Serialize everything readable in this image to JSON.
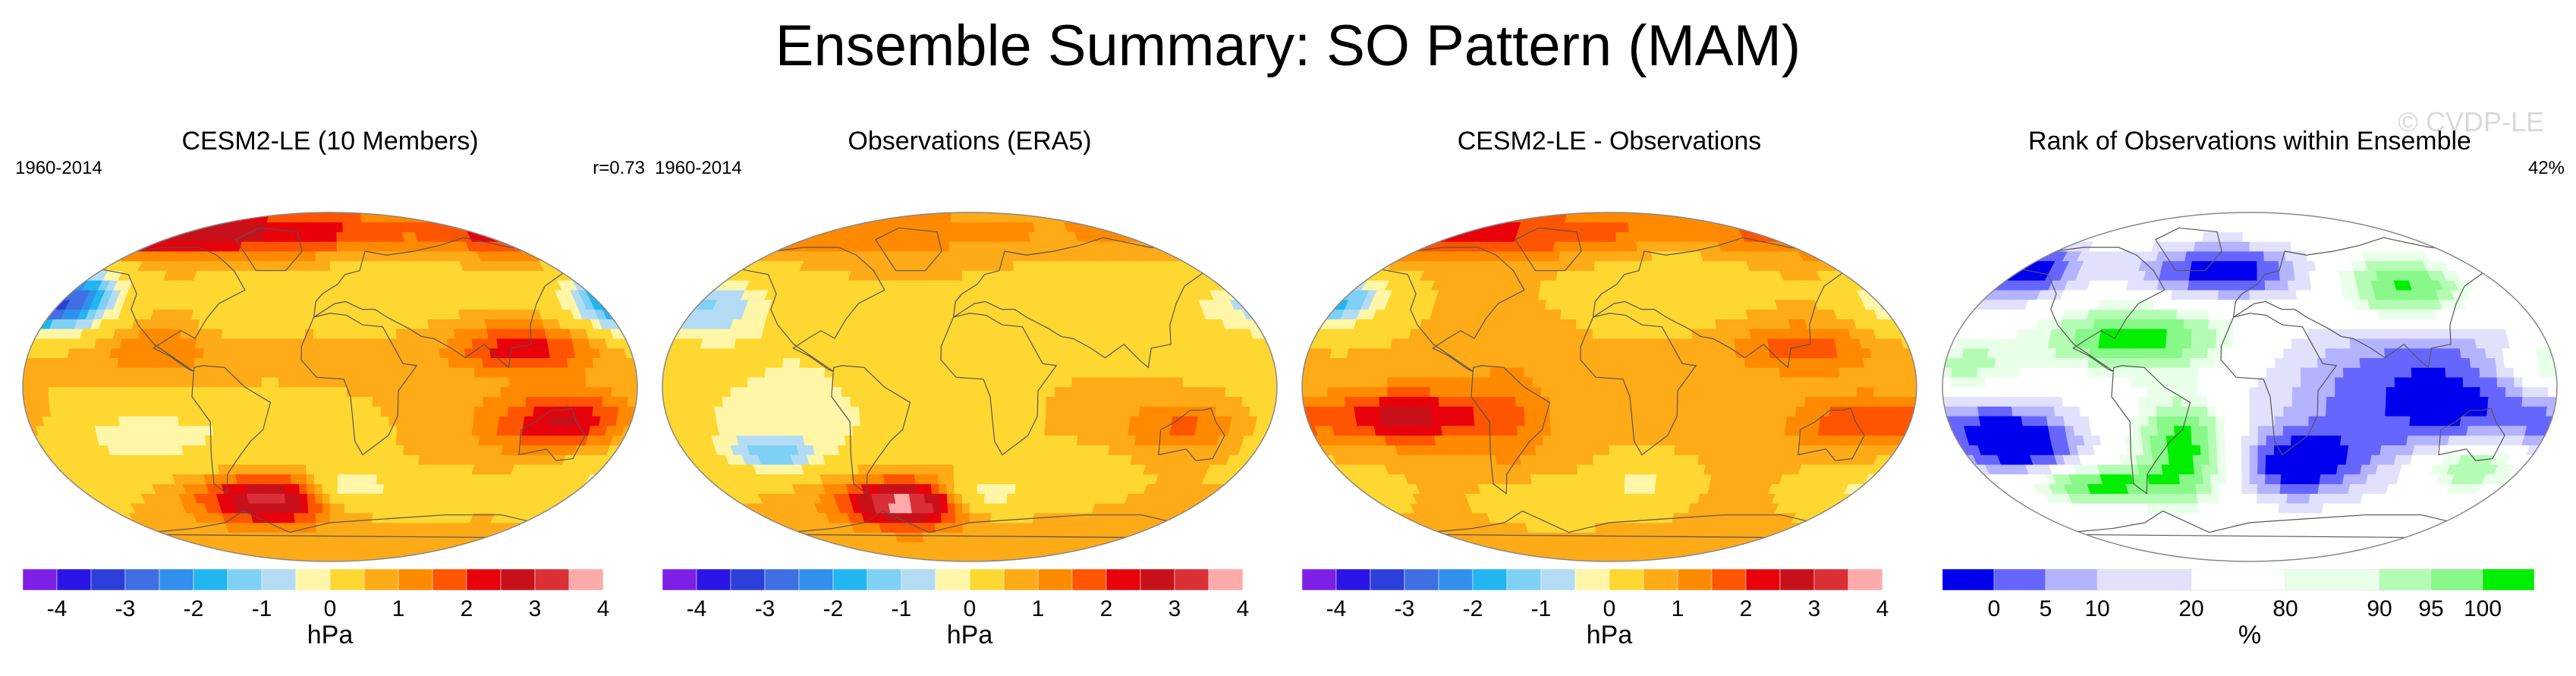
{
  "page": {
    "title": "Ensemble Summary: SO Pattern (MAM)",
    "watermark": "© CVDP-LE"
  },
  "colors": {
    "hpa_palette": [
      "#7e1fe6",
      "#2b14e6",
      "#2c3fd8",
      "#3f6fe3",
      "#3090ec",
      "#22b6f0",
      "#7fd0f5",
      "#b3dcf4",
      "#fff6a8",
      "#ffd731",
      "#ffaa17",
      "#ff8a00",
      "#ff5500",
      "#e8000b",
      "#c8101a",
      "#db2f38",
      "#ffaaaa"
    ],
    "rank_palette": [
      "#0000ee",
      "#6666ff",
      "#b3b3ff",
      "#e1e1fb",
      "#ffffff",
      "#e8ffe8",
      "#b4fcb4",
      "#88f888",
      "#00ee00"
    ]
  },
  "chart_data": [
    {
      "type": "heatmap",
      "title": "CESM2-LE (10 Members)",
      "period": "1960-2014",
      "stat": "r=0.73",
      "units": "hPa",
      "colorbar_ticks": [
        "-4",
        "-3",
        "-2",
        "-1",
        "0",
        "1",
        "2",
        "3",
        "4"
      ],
      "colorbar_levels": [
        -4.5,
        -4,
        -3.5,
        -3,
        -2.5,
        -2,
        -1.5,
        -1,
        -0.5,
        0.5,
        1,
        1.5,
        2,
        2.5,
        3,
        3.5,
        4,
        4.5
      ],
      "blobs": [
        {
          "lon": -170,
          "lat": 44,
          "sx": 26,
          "sy": 12,
          "value": -4.2
        },
        {
          "lon": 115,
          "lat": 20,
          "sx": 30,
          "sy": 9,
          "value": 1.8
        },
        {
          "lon": 140,
          "lat": -18,
          "sx": 32,
          "sy": 11,
          "value": 2.2
        },
        {
          "lon": -40,
          "lat": -58,
          "sx": 34,
          "sy": 9,
          "value": 2.8
        },
        {
          "lon": -110,
          "lat": -25,
          "sx": 60,
          "sy": 14,
          "value": -1.3
        },
        {
          "lon": 10,
          "lat": -52,
          "sx": 18,
          "sy": 8,
          "value": -2.0
        },
        {
          "lon": -120,
          "lat": 80,
          "sx": 150,
          "sy": 9,
          "value": 2.3
        },
        {
          "lon": 60,
          "lat": -55,
          "sx": 22,
          "sy": 7,
          "value": -0.9
        },
        {
          "lon": -100,
          "lat": 20,
          "sx": 35,
          "sy": 12,
          "value": 0.8
        },
        {
          "lon": -60,
          "lat": 40,
          "sx": 20,
          "sy": 15,
          "value": -0.7
        },
        {
          "lon": 40,
          "lat": 55,
          "sx": 40,
          "sy": 15,
          "value": -0.6
        },
        {
          "lon": 170,
          "lat": -50,
          "sx": 30,
          "sy": 10,
          "value": -1.0
        }
      ],
      "base": 0.55
    },
    {
      "type": "heatmap",
      "title": "Observations (ERA5)",
      "period": "1960-2014",
      "units": "hPa",
      "colorbar_ticks": [
        "-4",
        "-3",
        "-2",
        "-1",
        "0",
        "1",
        "2",
        "3",
        "4"
      ],
      "colorbar_levels": [
        -4.5,
        -4,
        -3.5,
        -3,
        -2.5,
        -2,
        -1.5,
        -1,
        -0.5,
        0.5,
        1,
        1.5,
        2,
        2.5,
        3,
        3.5,
        4,
        4.5
      ],
      "blobs": [
        {
          "lon": -165,
          "lat": 42,
          "sx": 30,
          "sy": 12,
          "value": -1.8
        },
        {
          "lon": 130,
          "lat": -20,
          "sx": 28,
          "sy": 10,
          "value": 1.2
        },
        {
          "lon": -45,
          "lat": -60,
          "sx": 30,
          "sy": 9,
          "value": 3.2
        },
        {
          "lon": -110,
          "lat": -20,
          "sx": 60,
          "sy": 16,
          "value": -1.2
        },
        {
          "lon": 10,
          "lat": -55,
          "sx": 18,
          "sy": 7,
          "value": -1.8
        },
        {
          "lon": -100,
          "lat": 15,
          "sx": 60,
          "sy": 18,
          "value": -0.9
        },
        {
          "lon": 100,
          "lat": 40,
          "sx": 50,
          "sy": 15,
          "value": -0.8
        },
        {
          "lon": -120,
          "lat": 80,
          "sx": 150,
          "sy": 8,
          "value": 0.9
        },
        {
          "lon": 60,
          "lat": -45,
          "sx": 25,
          "sy": 8,
          "value": -0.9
        },
        {
          "lon": -120,
          "lat": -35,
          "sx": 20,
          "sy": 6,
          "value": -1.8
        }
      ],
      "base": 0.55
    },
    {
      "type": "heatmap",
      "title": "CESM2-LE - Observations",
      "units": "hPa",
      "colorbar_ticks": [
        "-4",
        "-3",
        "-2",
        "-1",
        "0",
        "1",
        "2",
        "3",
        "4"
      ],
      "colorbar_levels": [
        -4.5,
        -4,
        -3.5,
        -3,
        -2.5,
        -2,
        -1.5,
        -1,
        -0.5,
        0.5,
        1,
        1.5,
        2,
        2.5,
        3,
        3.5,
        4,
        4.5
      ],
      "blobs": [
        {
          "lon": -170,
          "lat": 44,
          "sx": 22,
          "sy": 10,
          "value": -2.6
        },
        {
          "lon": 115,
          "lat": 20,
          "sx": 28,
          "sy": 9,
          "value": 1.3
        },
        {
          "lon": 150,
          "lat": -18,
          "sx": 30,
          "sy": 10,
          "value": 1.4
        },
        {
          "lon": -120,
          "lat": -15,
          "sx": 30,
          "sy": 10,
          "value": 2.2
        },
        {
          "lon": -120,
          "lat": 80,
          "sx": 150,
          "sy": 9,
          "value": 1.6
        },
        {
          "lon": 20,
          "lat": -50,
          "sx": 18,
          "sy": 8,
          "value": -1.2
        },
        {
          "lon": 170,
          "lat": -52,
          "sx": 25,
          "sy": 8,
          "value": -1.3
        },
        {
          "lon": -40,
          "lat": -58,
          "sx": 25,
          "sy": 7,
          "value": -0.8
        },
        {
          "lon": -60,
          "lat": -15,
          "sx": 20,
          "sy": 20,
          "value": 0.9
        },
        {
          "lon": 40,
          "lat": 55,
          "sx": 40,
          "sy": 15,
          "value": -0.6
        }
      ],
      "base": 0.55
    },
    {
      "type": "heatmap",
      "title": "Rank of Observations within Ensemble",
      "stat": "42%",
      "units": "%",
      "colorbar_ticks": [
        "0",
        "5",
        "10",
        "20",
        "80",
        "90",
        "95",
        "100"
      ],
      "colorbar_levels": [
        0,
        5,
        10,
        20,
        80,
        90,
        95,
        100
      ],
      "categories": [
        "0-5",
        "5-10",
        "10-20",
        "20-80",
        "80-90",
        "90-95",
        "95-100"
      ],
      "blobs": [
        {
          "lon": 120,
          "lat": -5,
          "sx": 70,
          "sy": 28,
          "value": -3
        },
        {
          "lon": -150,
          "lat": 60,
          "sx": 25,
          "sy": 10,
          "value": -3
        },
        {
          "lon": -175,
          "lat": 10,
          "sx": 30,
          "sy": 12,
          "value": 3
        },
        {
          "lon": -70,
          "lat": 25,
          "sx": 40,
          "sy": 12,
          "value": 3
        },
        {
          "lon": 100,
          "lat": 50,
          "sx": 30,
          "sy": 12,
          "value": 3
        },
        {
          "lon": -40,
          "lat": -30,
          "sx": 20,
          "sy": 18,
          "value": 3
        },
        {
          "lon": 140,
          "lat": -40,
          "sx": 25,
          "sy": 10,
          "value": 3
        },
        {
          "lon": -20,
          "lat": 60,
          "sx": 40,
          "sy": 10,
          "value": -3
        },
        {
          "lon": -140,
          "lat": -30,
          "sx": 25,
          "sy": 12,
          "value": -3
        },
        {
          "lon": -100,
          "lat": -50,
          "sx": 35,
          "sy": 7,
          "value": 3
        },
        {
          "lon": 30,
          "lat": -40,
          "sx": 25,
          "sy": 12,
          "value": -3
        }
      ],
      "base": 0
    }
  ]
}
